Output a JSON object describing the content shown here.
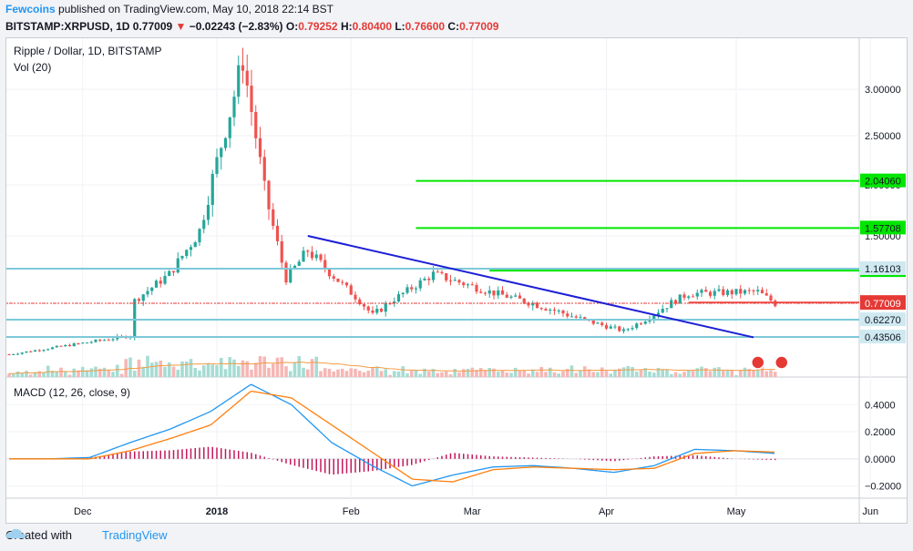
{
  "header": {
    "author": "Fewcoins",
    "published_text": "published on TradingView.com, May 10, 2018 22:14 BST",
    "symbol": "BITSTAMP:XRPUSD, 1D",
    "last_price": "0.77009",
    "change_arrow": "▼",
    "change": "−0.02243 (−2.83%)",
    "ohlc": [
      {
        "label": "O:",
        "value": "0.79252"
      },
      {
        "label": "H:",
        "value": "0.80400"
      },
      {
        "label": "L:",
        "value": "0.76600"
      },
      {
        "label": "C:",
        "value": "0.77009"
      }
    ]
  },
  "legend": {
    "main": "Ripple / Dollar, 1D, BITSTAMP",
    "volume": "Vol (20)",
    "macd": "MACD (12, 26, close, 9)"
  },
  "footer": {
    "created_with": "Created with",
    "brand": "TradingView"
  },
  "colors": {
    "up": "#26a69a",
    "down": "#ef5350",
    "trend_line": "#1c1fd6",
    "green_level": "#00e600",
    "cyan_level": "#7ec8d9",
    "macd_line": "#2196f3",
    "signal_line": "#ff7f0e",
    "histogram": "#c2185b",
    "last_price_tag": "#e53935"
  },
  "chart_data": [
    {
      "type": "candlestick",
      "title": "Ripple / Dollar, 1D, BITSTAMP",
      "x_ticks": [
        "Dec",
        "2018",
        "Feb",
        "Mar",
        "Apr",
        "May",
        "Jun"
      ],
      "y_ticks": [
        "3.00000",
        "2.50000",
        "2.00000",
        "1.50000"
      ],
      "ylim": [
        0.3,
        3.5
      ],
      "ohlc_approx": [
        {
          "date": "2017-12-12",
          "close": 0.45
        },
        {
          "date": "2017-12-13",
          "close": 0.8
        },
        {
          "date": "2017-12-21",
          "close": 1.1
        },
        {
          "date": "2017-12-28",
          "close": 1.55
        },
        {
          "date": "2018-01-04",
          "close": 2.75
        },
        {
          "date": "2018-01-07",
          "close": 3.31
        },
        {
          "date": "2018-01-12",
          "close": 1.95
        },
        {
          "date": "2018-01-17",
          "close": 1.05
        },
        {
          "date": "2018-01-22",
          "close": 1.35
        },
        {
          "date": "2018-02-06",
          "close": 0.66
        },
        {
          "date": "2018-02-20",
          "close": 1.1
        },
        {
          "date": "2018-03-05",
          "close": 0.9
        },
        {
          "date": "2018-04-05",
          "close": 0.5
        },
        {
          "date": "2018-04-20",
          "close": 0.88
        },
        {
          "date": "2018-05-06",
          "close": 0.9
        },
        {
          "date": "2018-05-10",
          "close": 0.77009
        }
      ],
      "levels": [
        {
          "kind": "resistance",
          "color": "green",
          "value": 2.0406,
          "label": "2.04060"
        },
        {
          "kind": "resistance",
          "color": "green",
          "value": 1.57708,
          "label": "1.57708"
        },
        {
          "kind": "resistance",
          "color": "green",
          "value": 1.13932,
          "label": "1.13932"
        },
        {
          "kind": "horizontal",
          "color": "cyan",
          "value": 1.16103,
          "label": "1.16103"
        },
        {
          "kind": "horizontal",
          "color": "cyan",
          "value": 0.6227,
          "label": "0.62270"
        },
        {
          "kind": "horizontal",
          "color": "cyan",
          "value": 0.43506,
          "label": "0.43506"
        },
        {
          "kind": "recent-high",
          "color": "red",
          "value": 0.7788,
          "label": "0.77880"
        },
        {
          "kind": "last-price",
          "color": "red",
          "value": 0.77009,
          "label": "0.77009"
        }
      ],
      "trend_line": {
        "from": {
          "date": "2018-01-22",
          "value": 1.5
        },
        "to": {
          "date": "2018-05-05",
          "value": 0.43
        }
      }
    },
    {
      "type": "line",
      "title": "MACD (12, 26, close, 9)",
      "y_ticks": [
        "0.4000",
        "0.2000",
        "0.0000",
        "−0.2000"
      ],
      "ylim": [
        -0.25,
        0.55
      ],
      "series": [
        {
          "name": "MACD",
          "values": [
            0,
            0,
            0.01,
            0.12,
            0.22,
            0.35,
            0.55,
            0.4,
            0.12,
            -0.05,
            -0.2,
            -0.12,
            -0.06,
            -0.05,
            -0.07,
            -0.1,
            -0.05,
            0.07,
            0.06,
            0.04
          ]
        },
        {
          "name": "Signal",
          "values": [
            0,
            0,
            0,
            0.06,
            0.15,
            0.25,
            0.5,
            0.45,
            0.25,
            0.05,
            -0.15,
            -0.17,
            -0.08,
            -0.06,
            -0.07,
            -0.08,
            -0.07,
            0.04,
            0.06,
            0.05
          ]
        }
      ]
    }
  ]
}
